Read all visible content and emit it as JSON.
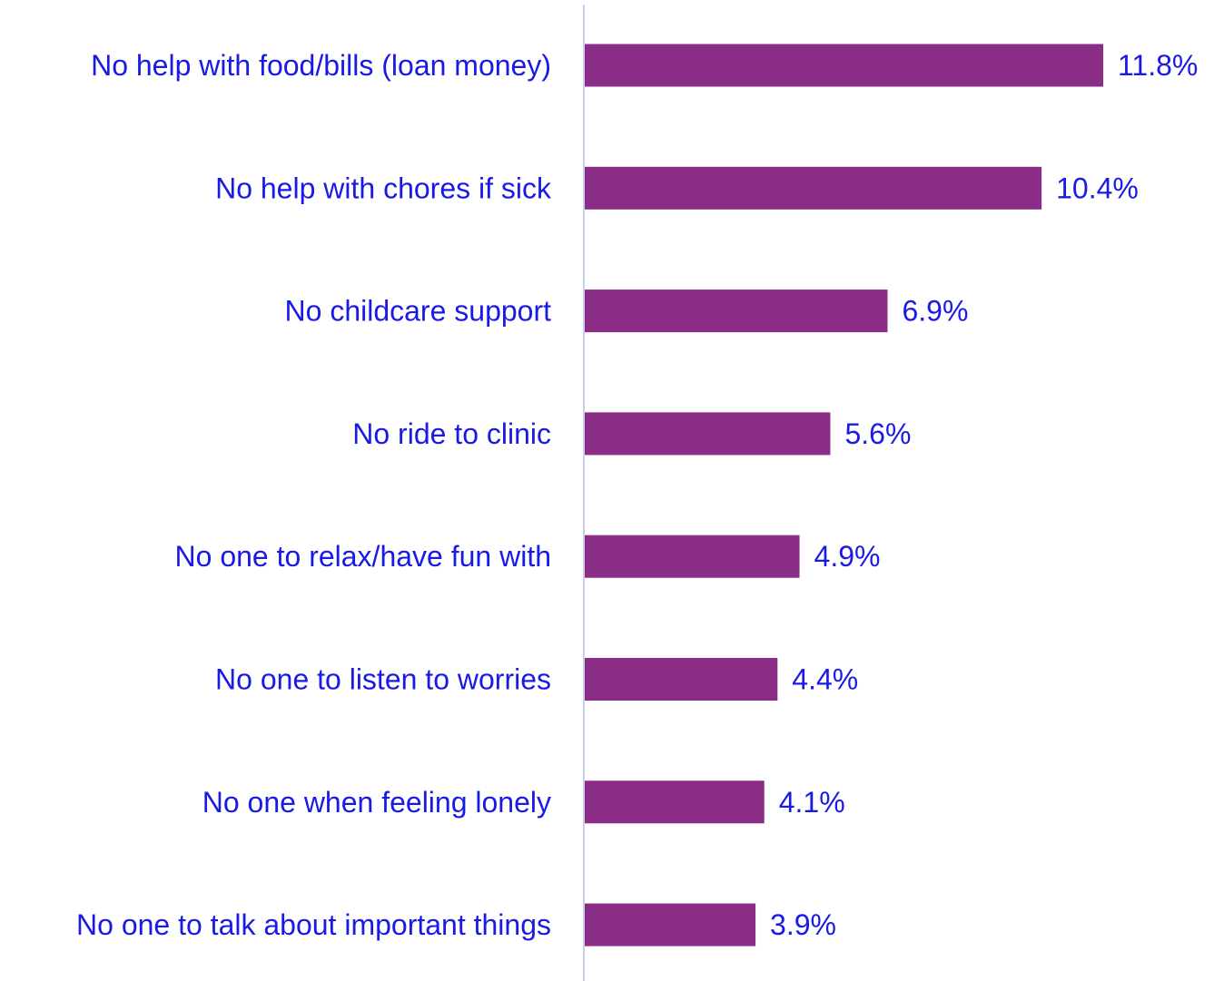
{
  "chart_data": {
    "type": "bar",
    "orientation": "horizontal",
    "title": "",
    "xlabel": "",
    "ylabel": "",
    "categories": [
      "No help with food/bills (loan money)",
      "No help with chores if sick",
      "No childcare support",
      "No ride to clinic",
      "No one to relax/have fun with",
      "No one to listen to worries",
      "No one when feeling lonely",
      "No one to talk about important things"
    ],
    "values": [
      11.8,
      10.4,
      6.9,
      5.6,
      4.9,
      4.4,
      4.1,
      3.9
    ],
    "value_labels": [
      "11.8%",
      "10.4%",
      "6.9%",
      "5.6%",
      "4.9%",
      "4.4%",
      "4.1%",
      "3.9%"
    ],
    "unit": "%",
    "xlim": [
      0,
      12
    ],
    "grid": false,
    "legend": "none",
    "colors": {
      "bar": "#8B2D86",
      "label_text": "#1A1AE6",
      "axis_line": "#C8D0EE"
    }
  }
}
